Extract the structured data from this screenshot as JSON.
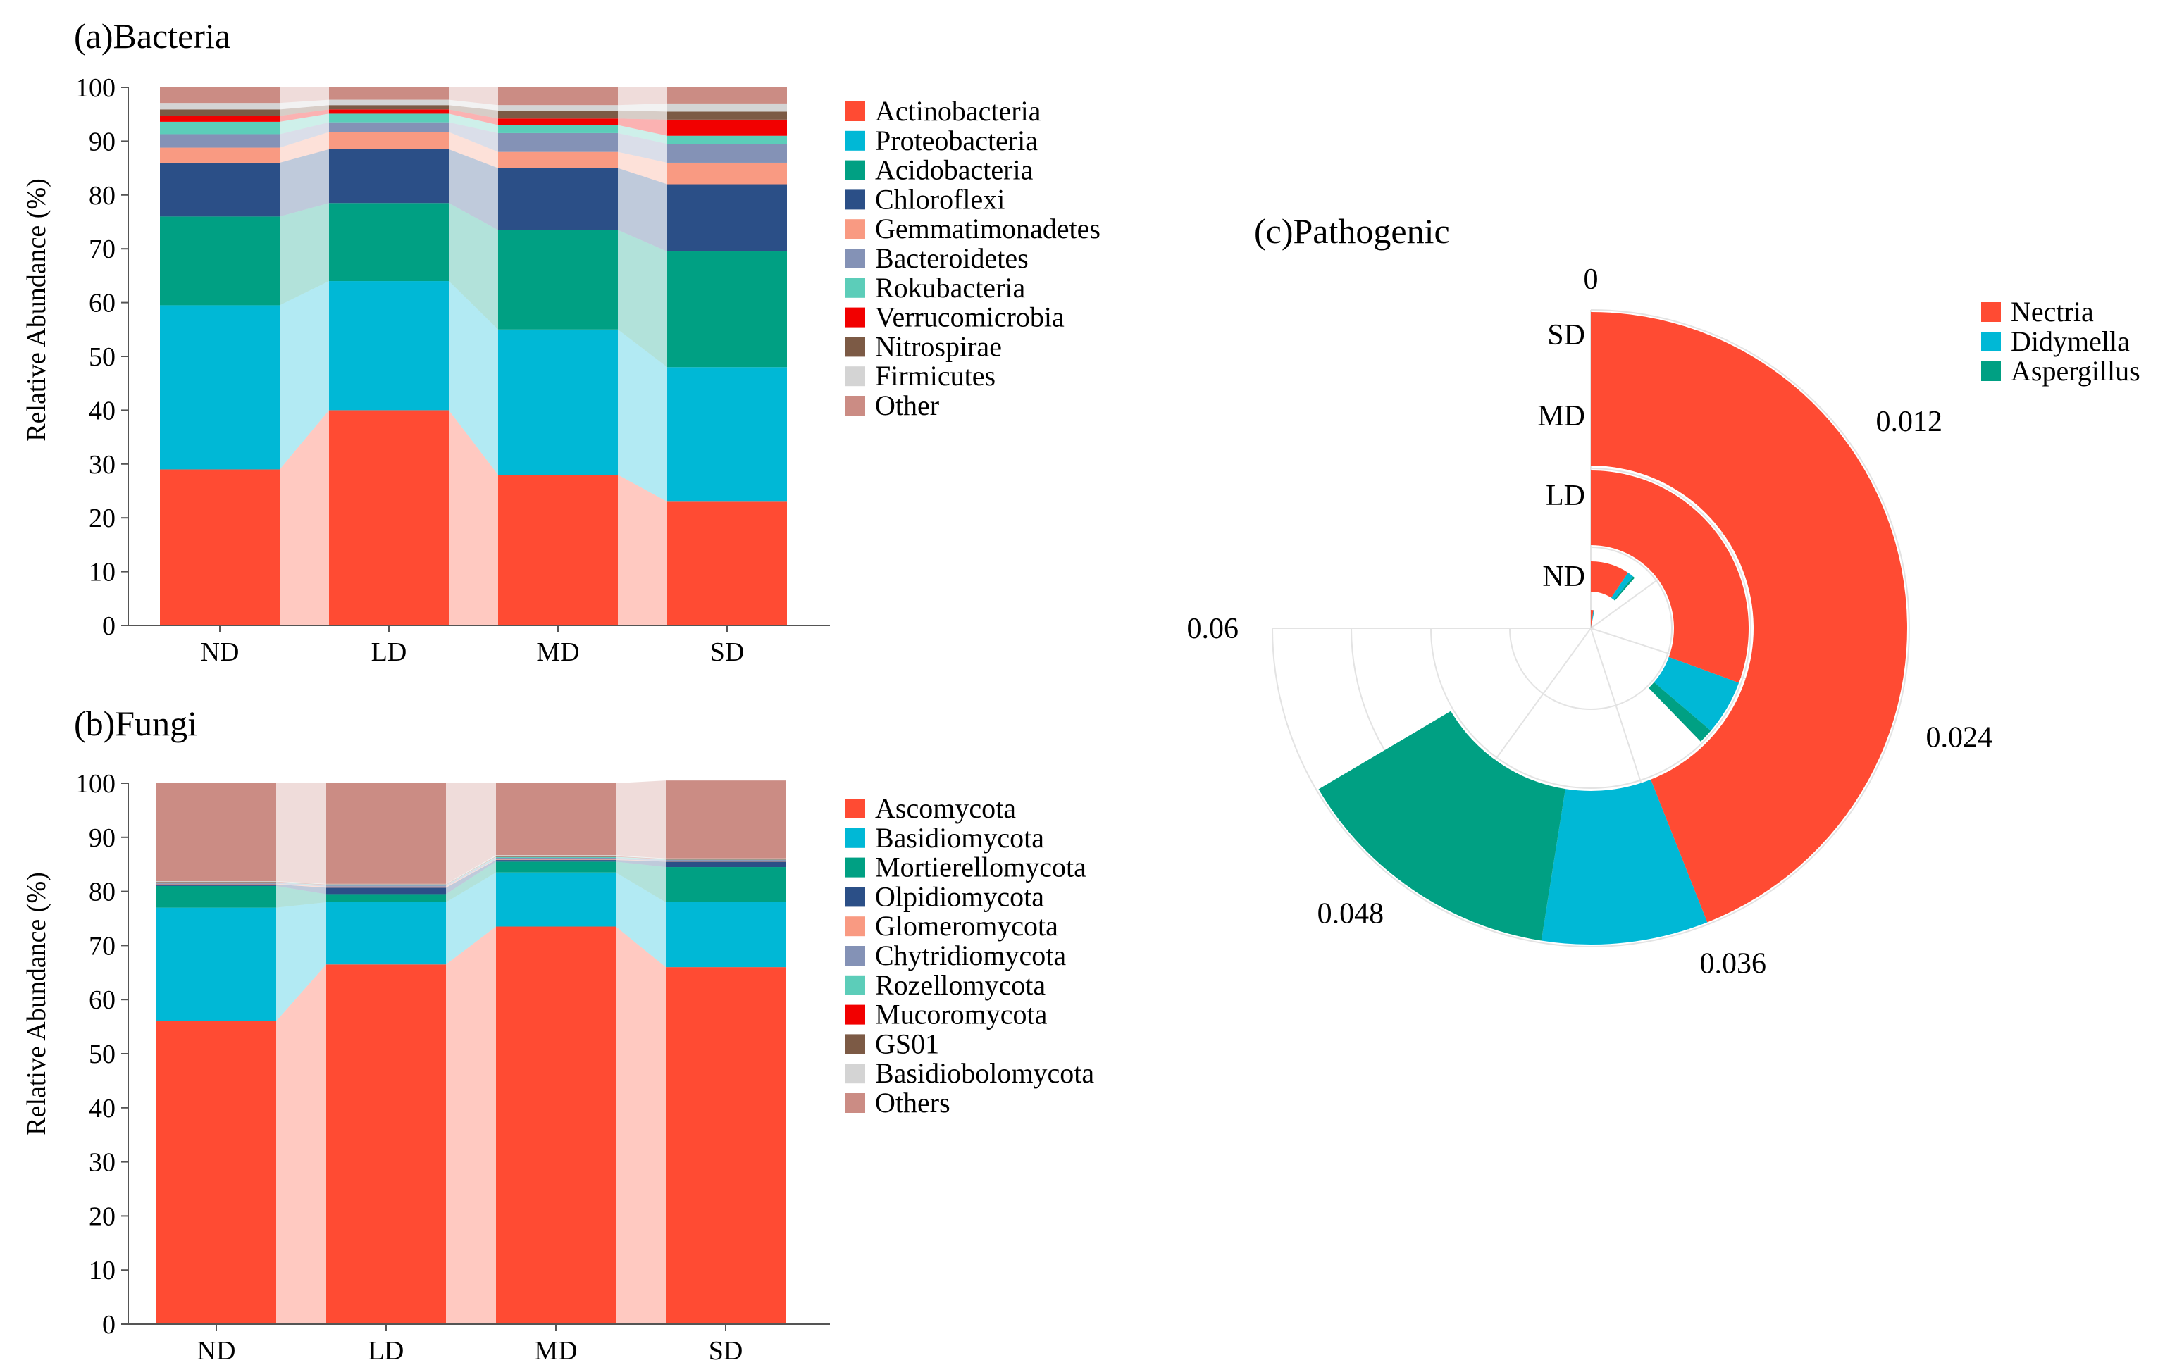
{
  "chart_data": [
    {
      "id": "bacteria",
      "type": "bar",
      "subtype": "stacked-percent",
      "title": "(a)Bacteria",
      "xlabel": "",
      "ylabel": "Relative Abundance (%)",
      "ylim": [
        0,
        100
      ],
      "yticks": [
        0,
        10,
        20,
        30,
        40,
        50,
        60,
        70,
        80,
        90,
        100
      ],
      "grid": false,
      "legend_position": "right",
      "categories": [
        "ND",
        "LD",
        "MD",
        "SD"
      ],
      "series": [
        {
          "name": "Actinobacteria",
          "color": "#FF4B33",
          "values": [
            29,
            40,
            28,
            23
          ]
        },
        {
          "name": "Proteobacteria",
          "color": "#00B8D6",
          "values": [
            30.5,
            24,
            27,
            25
          ]
        },
        {
          "name": "Acidobacteria",
          "color": "#00A083",
          "values": [
            16.5,
            14.5,
            18.5,
            21.5
          ]
        },
        {
          "name": "Chloroflexi",
          "color": "#2B4F87",
          "values": [
            10,
            10,
            11.5,
            12.5
          ]
        },
        {
          "name": "Gemmatimonadetes",
          "color": "#F99A82",
          "values": [
            2.8,
            3.2,
            3,
            4
          ]
        },
        {
          "name": "Bacteroidetes",
          "color": "#8492B6",
          "values": [
            2.5,
            1.8,
            3.5,
            3.5
          ]
        },
        {
          "name": "Rokubacteria",
          "color": "#5CCDB9",
          "values": [
            2.3,
            1.6,
            1.5,
            1.5
          ]
        },
        {
          "name": "Verrucomicrobia",
          "color": "#F20000",
          "values": [
            1.1,
            0.8,
            1.2,
            3
          ]
        },
        {
          "name": "Nitrospirae",
          "color": "#7C5A45",
          "values": [
            1.2,
            0.8,
            1.5,
            1.5
          ]
        },
        {
          "name": "Firmicutes",
          "color": "#D4D4D4",
          "values": [
            1.2,
            1,
            1,
            1.5
          ]
        },
        {
          "name": "Other",
          "color": "#CB8C84",
          "values": [
            2.9,
            2.3,
            3.3,
            3
          ]
        }
      ]
    },
    {
      "id": "fungi",
      "type": "bar",
      "subtype": "stacked-percent",
      "title": "(b)Fungi",
      "xlabel": "",
      "ylabel": "Relative Abundance (%)",
      "ylim": [
        0,
        100
      ],
      "yticks": [
        0,
        10,
        20,
        30,
        40,
        50,
        60,
        70,
        80,
        90,
        100
      ],
      "grid": false,
      "legend_position": "right",
      "categories": [
        "ND",
        "LD",
        "MD",
        "SD"
      ],
      "series": [
        {
          "name": "Ascomycota",
          "color": "#FF4B33",
          "values": [
            56,
            66.5,
            73.5,
            66
          ]
        },
        {
          "name": "Basidiomycota",
          "color": "#00B8D6",
          "values": [
            21,
            11.5,
            10,
            12
          ]
        },
        {
          "name": "Mortierellomycota",
          "color": "#00A083",
          "values": [
            4,
            1.5,
            2,
            6.5
          ]
        },
        {
          "name": "Olpidiomycota",
          "color": "#2B4F87",
          "values": [
            0.3,
            1.2,
            0.3,
            1
          ]
        },
        {
          "name": "Glomeromycota",
          "color": "#F99A82",
          "values": [
            0.1,
            0.2,
            0.1,
            0.1
          ]
        },
        {
          "name": "Chytridiomycota",
          "color": "#8492B6",
          "values": [
            0.2,
            0.2,
            0.3,
            0.2
          ]
        },
        {
          "name": "Rozellomycota",
          "color": "#5CCDB9",
          "values": [
            0.1,
            0.1,
            0.2,
            0.1
          ]
        },
        {
          "name": "Mucoromycota",
          "color": "#F20000",
          "values": [
            0.05,
            0.05,
            0.05,
            0.05
          ]
        },
        {
          "name": "GS01",
          "color": "#7C5A45",
          "values": [
            0.05,
            0.05,
            0.05,
            0.05
          ]
        },
        {
          "name": "Basidiobolomycota",
          "color": "#D4D4D4",
          "values": [
            0.1,
            0.1,
            0.2,
            0.1
          ]
        },
        {
          "name": "Others",
          "color": "#CB8C84",
          "values": [
            18.1,
            18.6,
            13.3,
            14.4
          ]
        }
      ]
    },
    {
      "id": "pathogenic",
      "type": "bar",
      "subtype": "radial-stacked",
      "title": "(c)Pathogenic",
      "angular_ticks": [
        0,
        0.012,
        0.024,
        0.036,
        0.048,
        0.06
      ],
      "angular_range": [
        0,
        0.06
      ],
      "angular_tick_labels": [
        "0",
        "0.012",
        "0.024",
        "0.036",
        "0.048",
        "0.06"
      ],
      "categories": [
        "ND",
        "LD",
        "MD",
        "SD"
      ],
      "legend_position": "right",
      "series": [
        {
          "name": "Nectria",
          "color": "#FF4B33",
          "values": [
            0.0018,
            0.0075,
            0.0245,
            0.0352
          ]
        },
        {
          "name": "Didymella",
          "color": "#00B8D6",
          "values": [
            0.0006,
            0.0012,
            0.0045,
            0.0068
          ]
        },
        {
          "name": "Aspergillus",
          "color": "#00A083",
          "values": [
            0.0001,
            0.0004,
            0.0012,
            0.0112
          ]
        }
      ]
    }
  ]
}
